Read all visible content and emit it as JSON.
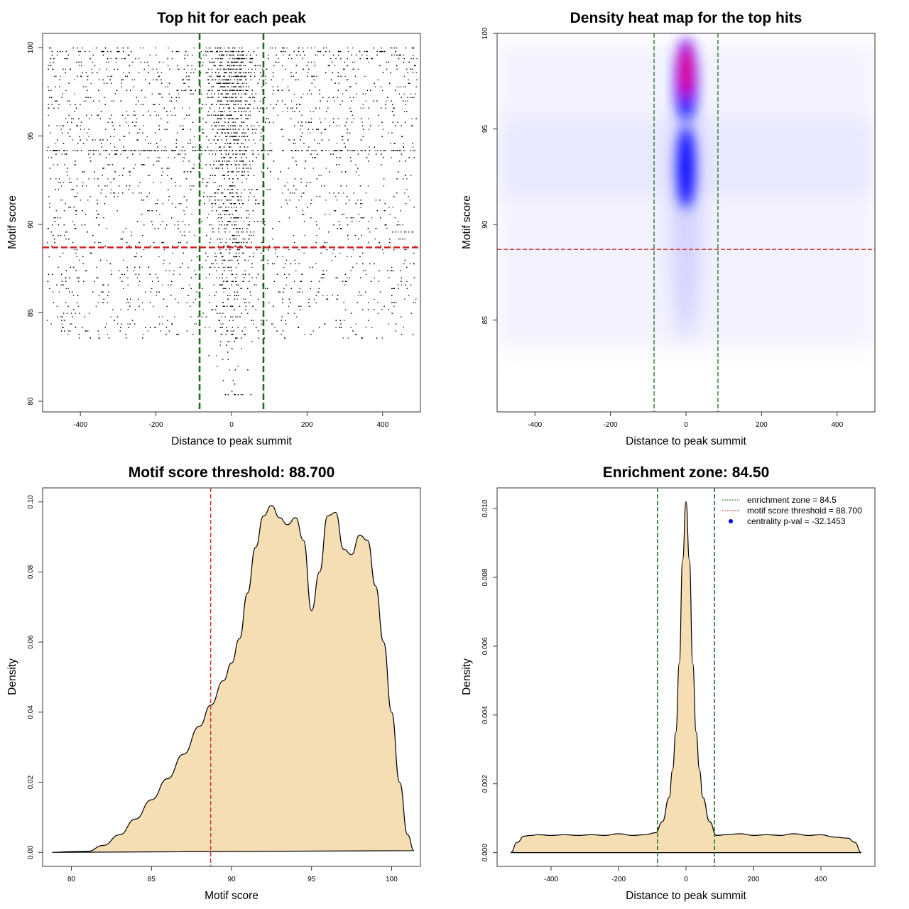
{
  "chart_data": [
    {
      "type": "scatter",
      "id": "top-hits",
      "title": "Top hit for each peak",
      "xlabel": "Distance to peak summit",
      "ylabel": "Motif score",
      "xlim": [
        -500,
        500
      ],
      "ylim": [
        79.4,
        100.8
      ],
      "xticks": [
        -400,
        -200,
        0,
        200,
        400
      ],
      "yticks": [
        80,
        85,
        90,
        95,
        100
      ],
      "vlines": [
        -84.5,
        84.5
      ],
      "hline": 88.7,
      "vline_color": "#1a6e1a",
      "hline_color": "#d62020",
      "point_color": "#000000",
      "n_points_approx": 7000
    },
    {
      "type": "heatmap",
      "id": "density-heatmap",
      "title": "Density heat map for the top hits",
      "xlabel": "Distance to peak summit",
      "ylabel": "Motif score",
      "xlim": [
        -500,
        500
      ],
      "ylim": [
        80.2,
        100
      ],
      "xticks": [
        -400,
        -200,
        0,
        200,
        400
      ],
      "yticks": [
        85,
        90,
        95,
        100
      ],
      "vlines": [
        -84.5,
        84.5
      ],
      "hline": 88.7,
      "colors": [
        "#ffffff",
        "#0000ff",
        "#ff0000"
      ],
      "hot_spots": [
        {
          "x": 0,
          "y": 97.5,
          "level": "high"
        },
        {
          "x": 0,
          "y": 93,
          "level": "medium"
        }
      ]
    },
    {
      "type": "area",
      "id": "score-density",
      "title": "Motif score threshold: 88.700",
      "xlabel": "Motif score",
      "ylabel": "Density",
      "xlim": [
        78.2,
        101.8
      ],
      "ylim": [
        -0.004,
        0.104
      ],
      "xticks": [
        80,
        85,
        90,
        95,
        100
      ],
      "yticks": [
        0.0,
        0.02,
        0.04,
        0.06,
        0.08,
        0.1
      ],
      "ytick_labels": [
        "0.00",
        "0.02",
        "0.04",
        "0.06",
        "0.08",
        "0.10"
      ],
      "vline": 88.7,
      "fill": "#f5deb3",
      "x": [
        78.8,
        80,
        81,
        82,
        83,
        84,
        85,
        86,
        87,
        88,
        88.7,
        89.5,
        90,
        90.5,
        91,
        91.5,
        92,
        92.5,
        93,
        93.5,
        94,
        94.5,
        95,
        95.5,
        96,
        96.5,
        97,
        97.5,
        98,
        98.5,
        99,
        99.5,
        100,
        100.5,
        101,
        101.4
      ],
      "y": [
        0.0,
        0.0002,
        0.0003,
        0.002,
        0.005,
        0.0095,
        0.015,
        0.021,
        0.028,
        0.036,
        0.042,
        0.049,
        0.054,
        0.061,
        0.074,
        0.087,
        0.096,
        0.099,
        0.0955,
        0.0935,
        0.0955,
        0.089,
        0.069,
        0.08,
        0.096,
        0.097,
        0.0865,
        0.085,
        0.0905,
        0.089,
        0.076,
        0.06,
        0.04,
        0.02,
        0.005,
        0.0005
      ]
    },
    {
      "type": "area",
      "id": "distance-density",
      "title": "Enrichment zone: 84.50",
      "xlabel": "Distance to peak summit",
      "ylabel": "Density",
      "xlim": [
        -560,
        560
      ],
      "ylim": [
        -0.0004,
        0.0106
      ],
      "xticks": [
        -400,
        -200,
        0,
        200,
        400
      ],
      "yticks": [
        0.0,
        0.002,
        0.004,
        0.006,
        0.008,
        0.01
      ],
      "ytick_labels": [
        "0.000",
        "0.002",
        "0.004",
        "0.006",
        "0.008",
        "0.010"
      ],
      "vlines": [
        -84.5,
        84.5
      ],
      "fill": "#f5deb3",
      "x": [
        -520,
        -500,
        -480,
        -460,
        -440,
        -400,
        -360,
        -320,
        -280,
        -240,
        -200,
        -160,
        -120,
        -90,
        -70,
        -50,
        -40,
        -30,
        -20,
        -10,
        0,
        10,
        20,
        30,
        40,
        50,
        70,
        90,
        120,
        160,
        200,
        240,
        280,
        320,
        360,
        400,
        440,
        480,
        500,
        520
      ],
      "y": [
        0.0,
        0.0003,
        0.00048,
        0.0005,
        0.00052,
        0.0005,
        0.00052,
        0.0005,
        0.00052,
        0.0005,
        0.00055,
        0.0005,
        0.00052,
        0.00058,
        0.0009,
        0.0016,
        0.0024,
        0.0035,
        0.0055,
        0.0085,
        0.0102,
        0.0085,
        0.0055,
        0.0035,
        0.0024,
        0.0016,
        0.0009,
        0.0005,
        0.00052,
        0.00055,
        0.0005,
        0.00052,
        0.0005,
        0.00055,
        0.0005,
        0.00052,
        0.00045,
        0.00042,
        0.0003,
        0.0
      ]
    }
  ],
  "legend": [
    {
      "label": "enrichment zone = 84.5",
      "color": "#1a6e1a",
      "kind": "dotted-line"
    },
    {
      "label": "motif score threshold = 88.700",
      "color": "#d62020",
      "kind": "dotted-line"
    },
    {
      "label": "centrality p-val = -32.1453",
      "color": "#0000ff",
      "kind": "point"
    }
  ]
}
